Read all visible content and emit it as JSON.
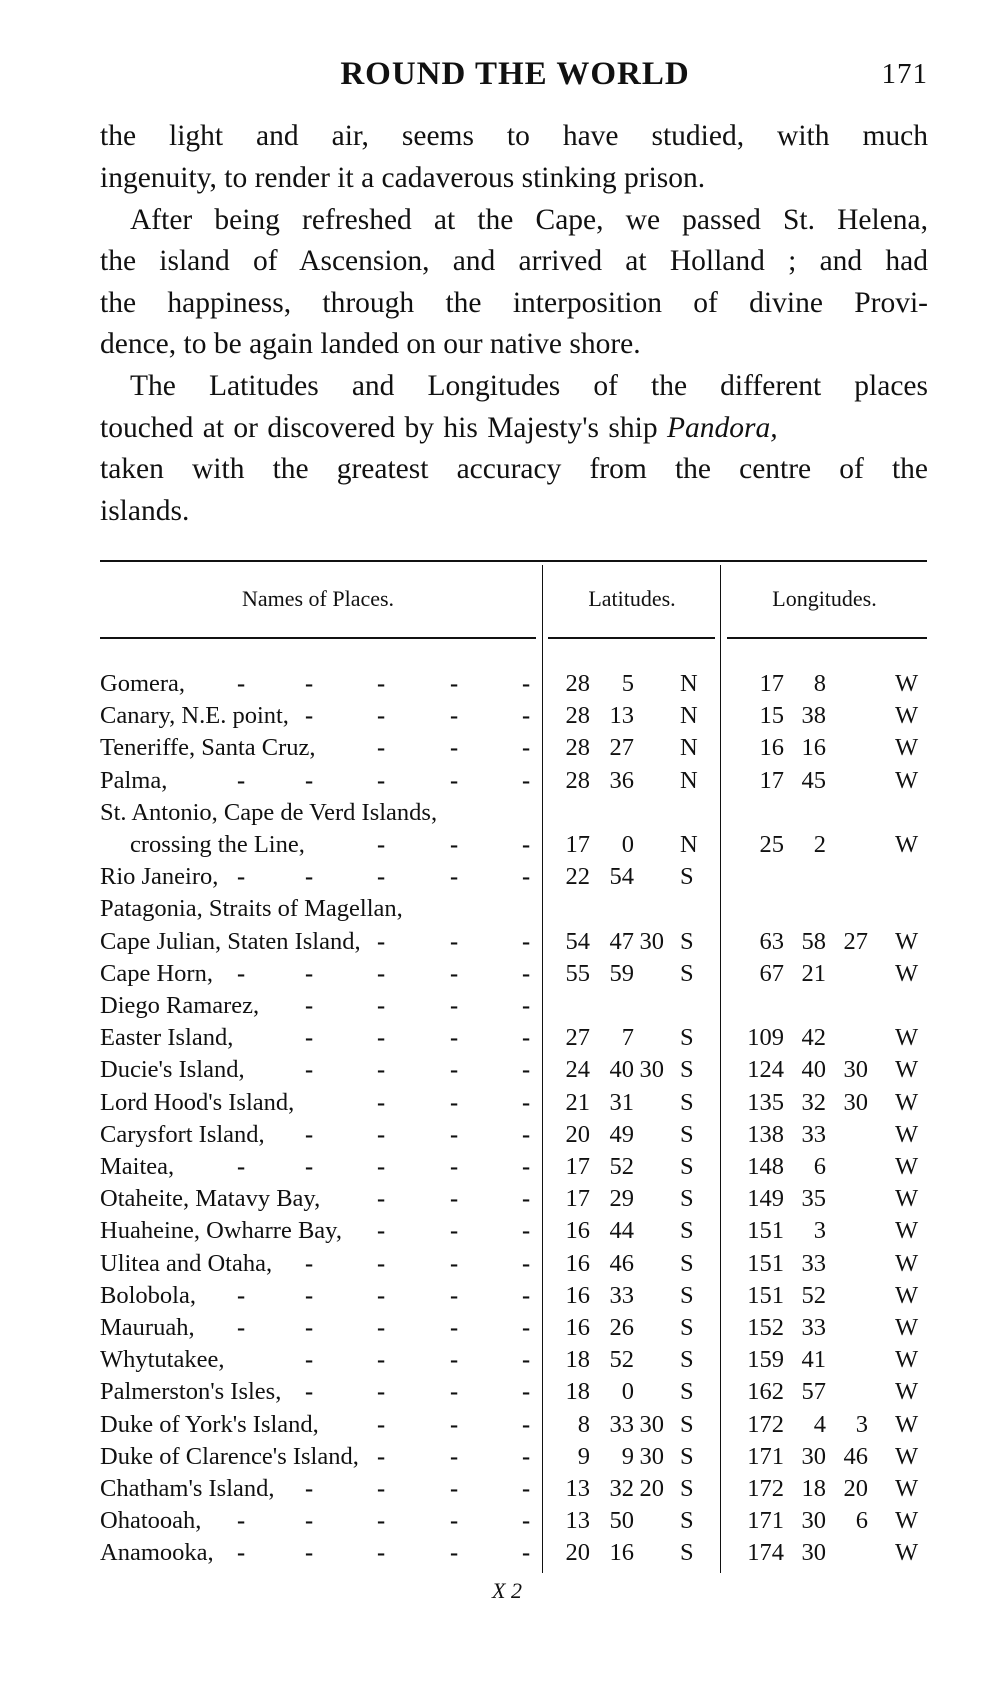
{
  "header": {
    "running_title": "ROUND THE WORLD",
    "page_number": "171"
  },
  "body_lines": [
    "the light and air, seems to have studied, with much",
    "ingenuity, to render it a cadaverous stinking prison.",
    "After being refreshed at the Cape, we passed St. Helena,",
    "the island of Ascension, and arrived at Holland ; and had",
    "the happiness, through the interposition of divine Provi-",
    "dence, to be again landed on our native shore.",
    "The Latitudes and Longitudes of the different places",
    "touched at or discovered by his Majesty's ship ",
    "taken with the greatest accuracy from the centre of the",
    "islands."
  ],
  "ship_name": "Pandora,",
  "table": {
    "headers": {
      "names": "Names of Places.",
      "latitudes": "Latitudes.",
      "longitudes": "Longitudes."
    },
    "rows": [
      {
        "name": "Gomera,",
        "leader": true,
        "lat": [
          "28",
          "5",
          ""
        ],
        "lat_h": "N",
        "lon": [
          "17",
          "8",
          ""
        ],
        "lon_h": "W"
      },
      {
        "name": "Canary, N.E. point,",
        "leader": true,
        "lat": [
          "28",
          "13",
          ""
        ],
        "lat_h": "N",
        "lon": [
          "15",
          "38",
          ""
        ],
        "lon_h": "W"
      },
      {
        "name": "Teneriffe, Santa Cruz,",
        "leader": true,
        "lat": [
          "28",
          "27",
          ""
        ],
        "lat_h": "N",
        "lon": [
          "16",
          "16",
          ""
        ],
        "lon_h": "W"
      },
      {
        "name": "Palma,",
        "leader": true,
        "lat": [
          "28",
          "36",
          ""
        ],
        "lat_h": "N",
        "lon": [
          "17",
          "45",
          ""
        ],
        "lon_h": "W"
      },
      {
        "name": "St. Antonio, Cape de Verd Islands,",
        "leader": false,
        "lat": [
          "",
          "",
          ""
        ],
        "lat_h": "",
        "lon": [
          "",
          "",
          ""
        ],
        "lon_h": ""
      },
      {
        "name": "crossing the Line,",
        "continuation": true,
        "leader": true,
        "lat": [
          "17",
          "0",
          ""
        ],
        "lat_h": "N",
        "lon": [
          "25",
          "2",
          ""
        ],
        "lon_h": "W"
      },
      {
        "name": "Rio Janeiro,",
        "leader": true,
        "lat": [
          "22",
          "54",
          ""
        ],
        "lat_h": "S",
        "lon": [
          "",
          "",
          ""
        ],
        "lon_h": ""
      },
      {
        "name": "Patagonia, Straits of Magellan,",
        "leader": false,
        "lat": [
          "",
          "",
          ""
        ],
        "lat_h": "",
        "lon": [
          "",
          "",
          ""
        ],
        "lon_h": ""
      },
      {
        "name": "Cape Julian, Staten Island,",
        "leader": true,
        "lat": [
          "54",
          "47",
          "30"
        ],
        "lat_h": "S",
        "lon": [
          "63",
          "58",
          "27"
        ],
        "lon_h": "W"
      },
      {
        "name": "Cape Horn,",
        "leader": true,
        "lat": [
          "55",
          "59",
          ""
        ],
        "lat_h": "S",
        "lon": [
          "67",
          "21",
          ""
        ],
        "lon_h": "W"
      },
      {
        "name": "Diego Ramarez,",
        "leader": true,
        "lat": [
          "",
          "",
          ""
        ],
        "lat_h": "",
        "lon": [
          "",
          "",
          ""
        ],
        "lon_h": ""
      },
      {
        "name": "Easter Island,",
        "leader": true,
        "lat": [
          "27",
          "7",
          ""
        ],
        "lat_h": "S",
        "lon": [
          "109",
          "42",
          ""
        ],
        "lon_h": "W"
      },
      {
        "name": "Ducie's Island,",
        "leader": true,
        "lat": [
          "24",
          "40",
          "30"
        ],
        "lat_h": "S",
        "lon": [
          "124",
          "40",
          "30"
        ],
        "lon_h": "W"
      },
      {
        "name": "Lord Hood's Island,",
        "leader": true,
        "lat": [
          "21",
          "31",
          ""
        ],
        "lat_h": "S",
        "lon": [
          "135",
          "32",
          "30"
        ],
        "lon_h": "W"
      },
      {
        "name": "Carysfort Island,",
        "leader": true,
        "lat": [
          "20",
          "49",
          ""
        ],
        "lat_h": "S",
        "lon": [
          "138",
          "33",
          ""
        ],
        "lon_h": "W"
      },
      {
        "name": "Maitea,",
        "leader": true,
        "lat": [
          "17",
          "52",
          ""
        ],
        "lat_h": "S",
        "lon": [
          "148",
          "6",
          ""
        ],
        "lon_h": "W"
      },
      {
        "name": "Otaheite, Matavy Bay,",
        "leader": true,
        "lat": [
          "17",
          "29",
          ""
        ],
        "lat_h": "S",
        "lon": [
          "149",
          "35",
          ""
        ],
        "lon_h": "W"
      },
      {
        "name": "Huaheine, Owharre Bay,",
        "leader": true,
        "lat": [
          "16",
          "44",
          ""
        ],
        "lat_h": "S",
        "lon": [
          "151",
          "3",
          ""
        ],
        "lon_h": "W"
      },
      {
        "name": "Ulitea and Otaha,",
        "leader": true,
        "lat": [
          "16",
          "46",
          ""
        ],
        "lat_h": "S",
        "lon": [
          "151",
          "33",
          ""
        ],
        "lon_h": "W"
      },
      {
        "name": "Bolobola,",
        "leader": true,
        "lat": [
          "16",
          "33",
          ""
        ],
        "lat_h": "S",
        "lon": [
          "151",
          "52",
          ""
        ],
        "lon_h": "W"
      },
      {
        "name": "Mauruah,",
        "leader": true,
        "lat": [
          "16",
          "26",
          ""
        ],
        "lat_h": "S",
        "lon": [
          "152",
          "33",
          ""
        ],
        "lon_h": "W"
      },
      {
        "name": "Whytutakee,",
        "leader": true,
        "lat": [
          "18",
          "52",
          ""
        ],
        "lat_h": "S",
        "lon": [
          "159",
          "41",
          ""
        ],
        "lon_h": "W"
      },
      {
        "name": "Palmerston's Isles,",
        "leader": true,
        "lat": [
          "18",
          "0",
          ""
        ],
        "lat_h": "S",
        "lon": [
          "162",
          "57",
          ""
        ],
        "lon_h": "W"
      },
      {
        "name": "Duke of York's Island,",
        "leader": true,
        "lat": [
          "8",
          "33",
          "30"
        ],
        "lat_h": "S",
        "lon": [
          "172",
          "4",
          "3"
        ],
        "lon_h": "W"
      },
      {
        "name": "Duke of Clarence's Island,",
        "leader": true,
        "lat": [
          "9",
          "9",
          "30"
        ],
        "lat_h": "S",
        "lon": [
          "171",
          "30",
          "46"
        ],
        "lon_h": "W"
      },
      {
        "name": "Chatham's Island,",
        "leader": true,
        "lat": [
          "13",
          "32",
          "20"
        ],
        "lat_h": "S",
        "lon": [
          "172",
          "18",
          "20"
        ],
        "lon_h": "W"
      },
      {
        "name": "Ohatooah,",
        "leader": true,
        "lat": [
          "13",
          "50",
          ""
        ],
        "lat_h": "S",
        "lon": [
          "171",
          "30",
          "6"
        ],
        "lon_h": "W"
      },
      {
        "name": "Anamooka,",
        "leader": true,
        "lat": [
          "20",
          "16",
          ""
        ],
        "lat_h": "S",
        "lon": [
          "174",
          "30",
          ""
        ],
        "lon_h": "W"
      }
    ]
  },
  "footer": {
    "signature_mark": "X 2"
  }
}
